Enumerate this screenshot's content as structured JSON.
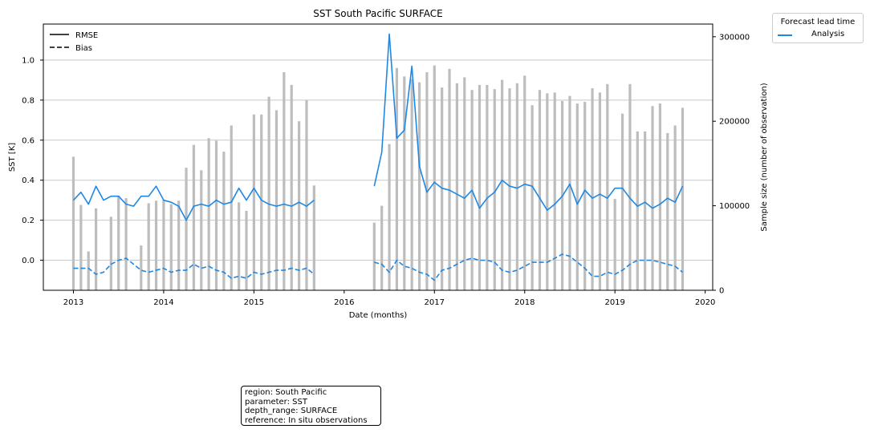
{
  "chart_data": {
    "type": "line",
    "title": "SST South Pacific SURFACE",
    "xlabel": "Date (months)",
    "ylabel": "SST [K]",
    "y2label": "Sample size (number of observation)",
    "ylim": [
      -0.15,
      1.18
    ],
    "y2lim": [
      0,
      315000
    ],
    "xlim": [
      "2012-09",
      "2020-02"
    ],
    "x_ticks": [
      "2013",
      "2014",
      "2015",
      "2016",
      "2017",
      "2018",
      "2019",
      "2020"
    ],
    "y_ticks": [
      "0.0",
      "0.2",
      "0.4",
      "0.6",
      "0.8",
      "1.0"
    ],
    "y2_ticks": [
      "0",
      "100000",
      "200000",
      "300000"
    ],
    "grid": "horizontal",
    "style_legend": {
      "position": "top-left",
      "entries": [
        {
          "label": "RMSE",
          "style": "solid"
        },
        {
          "label": "Bias",
          "style": "dashed"
        }
      ]
    },
    "lead_legend": {
      "title": "Forecast lead time",
      "position": "outside-right",
      "entries": [
        {
          "label": "Analysis",
          "color": "#1e88e5"
        }
      ]
    },
    "colors": {
      "series": "#1e88e5",
      "bars": "#bdbdbd",
      "grid": "#c8c8c8"
    },
    "segments": [
      {
        "start": "2013-01",
        "rmse": [
          0.3,
          0.34,
          0.28,
          0.37,
          0.3,
          0.32,
          0.32,
          0.28,
          0.27,
          0.32,
          0.32,
          0.37,
          0.3,
          0.29,
          0.27,
          0.2,
          0.27,
          0.28,
          0.27,
          0.3,
          0.28,
          0.29,
          0.36,
          0.3,
          0.36,
          0.3,
          0.28,
          0.27,
          0.28,
          0.27,
          0.29,
          0.27,
          0.3
        ],
        "bias": [
          -0.04,
          -0.04,
          -0.04,
          -0.07,
          -0.06,
          -0.02,
          0.0,
          0.01,
          -0.02,
          -0.05,
          -0.06,
          -0.05,
          -0.04,
          -0.06,
          -0.05,
          -0.05,
          -0.02,
          -0.04,
          -0.03,
          -0.05,
          -0.06,
          -0.09,
          -0.08,
          -0.09,
          -0.06,
          -0.07,
          -0.06,
          -0.05,
          -0.05,
          -0.04,
          -0.05,
          -0.04,
          -0.07
        ],
        "sample_size": [
          158000,
          101000,
          46000,
          97000,
          0,
          87000,
          112000,
          109000,
          0,
          53000,
          103000,
          106000,
          107000,
          102000,
          106000,
          145000,
          172000,
          142000,
          180000,
          177000,
          164000,
          195000,
          104000,
          94000,
          208000,
          208000,
          229000,
          213000,
          258000,
          243000,
          200000,
          225000,
          124000
        ]
      },
      {
        "start": "2016-05",
        "rmse": [
          0.37,
          0.54,
          1.13,
          0.61,
          0.65,
          0.97,
          0.47,
          0.34,
          0.39,
          0.36,
          0.35,
          0.33,
          0.31,
          0.35,
          0.26,
          0.31,
          0.34,
          0.4,
          0.37,
          0.36,
          0.38,
          0.37,
          0.31,
          0.25,
          0.28,
          0.32,
          0.38,
          0.28,
          0.35,
          0.31,
          0.33,
          0.31,
          0.36,
          0.36,
          0.31,
          0.27,
          0.29,
          0.26,
          0.28,
          0.31,
          0.29,
          0.37
        ],
        "bias": [
          -0.01,
          -0.02,
          -0.06,
          0.0,
          -0.03,
          -0.04,
          -0.06,
          -0.07,
          -0.1,
          -0.05,
          -0.04,
          -0.02,
          0.0,
          0.01,
          0.0,
          0.0,
          -0.01,
          -0.05,
          -0.06,
          -0.05,
          -0.03,
          -0.01,
          -0.01,
          -0.01,
          0.01,
          0.03,
          0.02,
          -0.01,
          -0.04,
          -0.08,
          -0.08,
          -0.06,
          -0.07,
          -0.05,
          -0.02,
          0.0,
          0.0,
          0.0,
          -0.01,
          -0.02,
          -0.03,
          -0.06
        ],
        "sample_size": [
          80000,
          100000,
          173000,
          263000,
          253000,
          250000,
          246000,
          258000,
          266000,
          240000,
          262000,
          245000,
          252000,
          237000,
          243000,
          243000,
          238000,
          249000,
          239000,
          245000,
          254000,
          219000,
          237000,
          233000,
          234000,
          224000,
          230000,
          221000,
          223000,
          239000,
          234000,
          244000,
          108000,
          209000,
          244000,
          188000,
          188000,
          218000,
          221000,
          186000,
          195000,
          216000
        ]
      }
    ]
  },
  "info_box": {
    "region": "region: South Pacific",
    "parameter": "parameter: SST",
    "depth_range": "depth_range: SURFACE",
    "reference": "reference: In situ observations"
  }
}
